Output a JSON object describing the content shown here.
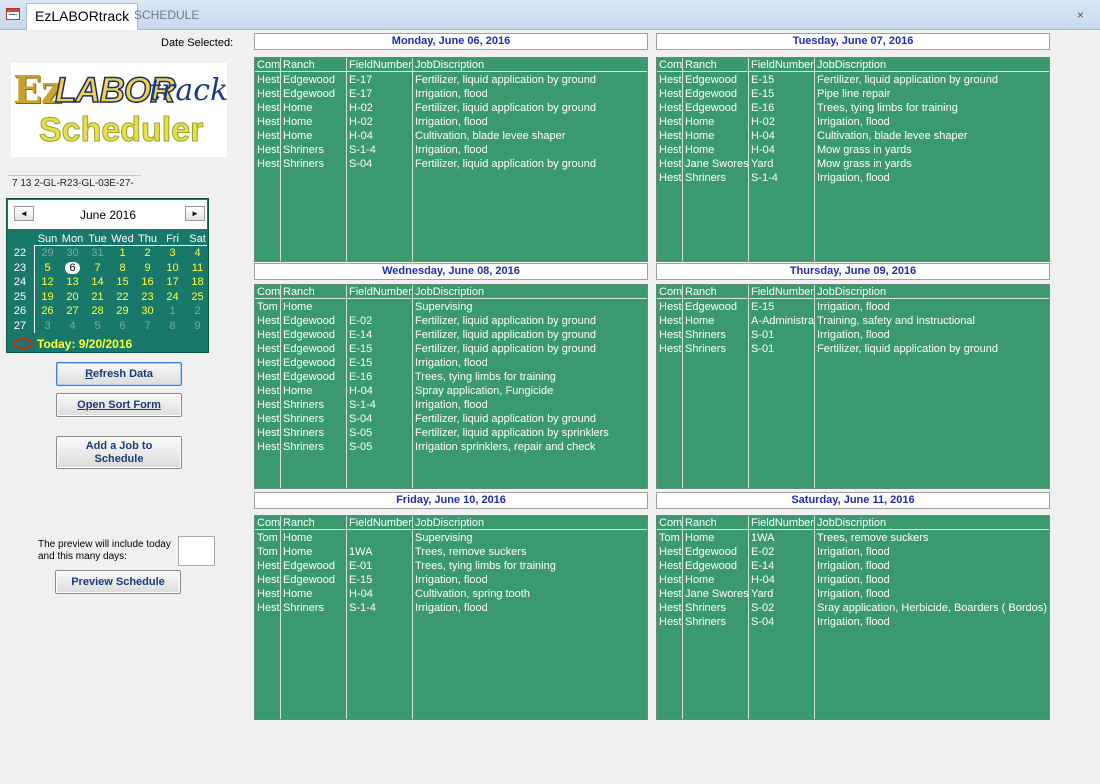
{
  "window": {
    "tab_active": "EzLABORtrack",
    "tab_inactive": "SCHEDULE",
    "close": "×"
  },
  "left": {
    "date_selected_label": "Date Selected:",
    "logo": {
      "ez": "Ez",
      "labor": "LABOR",
      "track": "track",
      "scheduler": "Scheduler"
    },
    "code_value": "7 13 2-GL-R23-GL-03E-27-",
    "calendar": {
      "title": "June 2016",
      "prev": "◄",
      "next": "►",
      "dow": [
        "Sun",
        "Mon",
        "Tue",
        "Wed",
        "Thu",
        "Fri",
        "Sat"
      ],
      "weeks": [
        {
          "wk": "22",
          "days": [
            [
              "29",
              "dim"
            ],
            [
              "30",
              "dim"
            ],
            [
              "31",
              "dim"
            ],
            [
              "1",
              ""
            ],
            [
              "2",
              ""
            ],
            [
              "3",
              ""
            ],
            [
              "4",
              ""
            ]
          ]
        },
        {
          "wk": "23",
          "days": [
            [
              "5",
              ""
            ],
            [
              "6",
              "sel"
            ],
            [
              "7",
              ""
            ],
            [
              "8",
              ""
            ],
            [
              "9",
              ""
            ],
            [
              "10",
              ""
            ],
            [
              "11",
              ""
            ]
          ]
        },
        {
          "wk": "24",
          "days": [
            [
              "12",
              ""
            ],
            [
              "13",
              ""
            ],
            [
              "14",
              ""
            ],
            [
              "15",
              ""
            ],
            [
              "16",
              ""
            ],
            [
              "17",
              ""
            ],
            [
              "18",
              ""
            ]
          ]
        },
        {
          "wk": "25",
          "days": [
            [
              "19",
              ""
            ],
            [
              "20",
              ""
            ],
            [
              "21",
              ""
            ],
            [
              "22",
              ""
            ],
            [
              "23",
              ""
            ],
            [
              "24",
              ""
            ],
            [
              "25",
              ""
            ]
          ]
        },
        {
          "wk": "26",
          "days": [
            [
              "26",
              ""
            ],
            [
              "27",
              ""
            ],
            [
              "28",
              ""
            ],
            [
              "29",
              ""
            ],
            [
              "30",
              ""
            ],
            [
              "1",
              "dim"
            ],
            [
              "2",
              "dim"
            ]
          ]
        },
        {
          "wk": "27",
          "days": [
            [
              "3",
              "dim"
            ],
            [
              "4",
              "dim"
            ],
            [
              "5",
              "dim"
            ],
            [
              "6",
              "dim"
            ],
            [
              "7",
              "dim"
            ],
            [
              "8",
              "dim"
            ],
            [
              "9",
              "dim"
            ]
          ]
        }
      ],
      "today": "Today: 9/20/2016"
    },
    "buttons": {
      "refresh_u": "R",
      "refresh_rest": "efresh Data",
      "sort_u": "O",
      "sort_rest": "pen Sort Form",
      "addjob_line1": "Add a Job to",
      "addjob_line2": "Schedule",
      "preview": "Preview Schedule"
    },
    "preview_note": "The preview will include today and this many days:",
    "days_value": ""
  },
  "columns": [
    "Com",
    "Ranch",
    "FieldNumber",
    "JobDiscription"
  ],
  "days": [
    {
      "title": "Monday, June 06, 2016",
      "rows": [
        [
          "Hest",
          "Edgewood",
          "E-17",
          "Fertilizer, liquid application by ground"
        ],
        [
          "Hest",
          "Edgewood",
          "E-17",
          "Irrigation, flood"
        ],
        [
          "Hest",
          "Home",
          "H-02",
          "Fertilizer, liquid application by ground"
        ],
        [
          "Hest",
          "Home",
          "H-02",
          "Irrigation, flood"
        ],
        [
          "Hest",
          "Home",
          "H-04",
          "Cultivation, blade levee shaper"
        ],
        [
          "Hest",
          "Shriners",
          "S-1-4",
          "Irrigation, flood"
        ],
        [
          "Hest",
          "Shriners",
          "S-04",
          "Fertilizer, liquid application by ground"
        ]
      ]
    },
    {
      "title": "Tuesday, June 07, 2016",
      "rows": [
        [
          "Hest",
          "Edgewood",
          "E-15",
          "Fertilizer, liquid application by ground"
        ],
        [
          "Hest",
          "Edgewood",
          "E-15",
          "Pipe line repair"
        ],
        [
          "Hest",
          "Edgewood",
          "E-16",
          "Trees, tying limbs for training"
        ],
        [
          "Hest",
          "Home",
          "H-02",
          "Irrigation, flood"
        ],
        [
          "Hest",
          "Home",
          "H-04",
          "Cultivation, blade levee shaper"
        ],
        [
          "Hest",
          "Home",
          "H-04",
          "Mow grass in yards"
        ],
        [
          "Hest",
          "Jane Swores",
          "Yard",
          "Mow grass in yards"
        ],
        [
          "Hest",
          "Shriners",
          "S-1-4",
          "Irrigation, flood"
        ]
      ]
    },
    {
      "title": "Wednesday, June 08, 2016",
      "rows": [
        [
          "Tom",
          "Home",
          "",
          "Supervising"
        ],
        [
          "Hest",
          "Edgewood",
          "E-02",
          "Fertilizer, liquid application by ground"
        ],
        [
          "Hest",
          "Edgewood",
          "E-14",
          "Fertilizer, liquid application by ground"
        ],
        [
          "Hest",
          "Edgewood",
          "E-15",
          "Fertilizer, liquid application by ground"
        ],
        [
          "Hest",
          "Edgewood",
          "E-15",
          "Irrigation, flood"
        ],
        [
          "Hest",
          "Edgewood",
          "E-16",
          "Trees, tying limbs for training"
        ],
        [
          "Hest",
          "Home",
          "H-04",
          "Spray application, Fungicide"
        ],
        [
          "Hest",
          "Shriners",
          "S-1-4",
          "Irrigation, flood"
        ],
        [
          "Hest",
          "Shriners",
          "S-04",
          "Fertilizer, liquid application by ground"
        ],
        [
          "Hest",
          "Shriners",
          "S-05",
          "Fertilizer, liquid application by sprinklers"
        ],
        [
          "Hest",
          "Shriners",
          "S-05",
          "Irrigation sprinklers, repair and check"
        ]
      ]
    },
    {
      "title": "Thursday, June 09, 2016",
      "rows": [
        [
          "Hest",
          "Edgewood",
          "E-15",
          "Irrigation, flood"
        ],
        [
          "Hest",
          "Home",
          "A-Administra",
          "Training, safety and instructional"
        ],
        [
          "Hest",
          "Shriners",
          "S-01",
          "Irrigation, flood"
        ],
        [
          "Hest",
          "Shriners",
          "S-01",
          "Fertilizer, liquid application by ground"
        ]
      ]
    },
    {
      "title": "Friday, June 10, 2016",
      "rows": [
        [
          "Tom",
          "Home",
          "",
          "Supervising"
        ],
        [
          "Tom",
          "Home",
          "1WA",
          "Trees, remove suckers"
        ],
        [
          "Hest",
          "Edgewood",
          "E-01",
          "Trees, tying limbs for training"
        ],
        [
          "Hest",
          "Edgewood",
          "E-15",
          "Irrigation, flood"
        ],
        [
          "Hest",
          "Home",
          "H-04",
          "Cultivation, spring tooth"
        ],
        [
          "Hest",
          "Shriners",
          "S-1-4",
          "Irrigation, flood"
        ]
      ]
    },
    {
      "title": "Saturday, June 11, 2016",
      "rows": [
        [
          "Tom",
          "Home",
          "1WA",
          "Trees, remove suckers"
        ],
        [
          "Hest",
          "Edgewood",
          "E-02",
          "Irrigation, flood"
        ],
        [
          "Hest",
          "Edgewood",
          "E-14",
          "Irrigation, flood"
        ],
        [
          "Hest",
          "Home",
          "H-04",
          "Irrigation, flood"
        ],
        [
          "Hest",
          "Jane Swores",
          "Yard",
          "Irrigation, flood"
        ],
        [
          "Hest",
          "Shriners",
          "S-02",
          "Sray application, Herbicide, Boarders ( Bordos)"
        ],
        [
          "Hest",
          "Shriners",
          "S-04",
          "Irrigation, flood"
        ]
      ]
    }
  ]
}
